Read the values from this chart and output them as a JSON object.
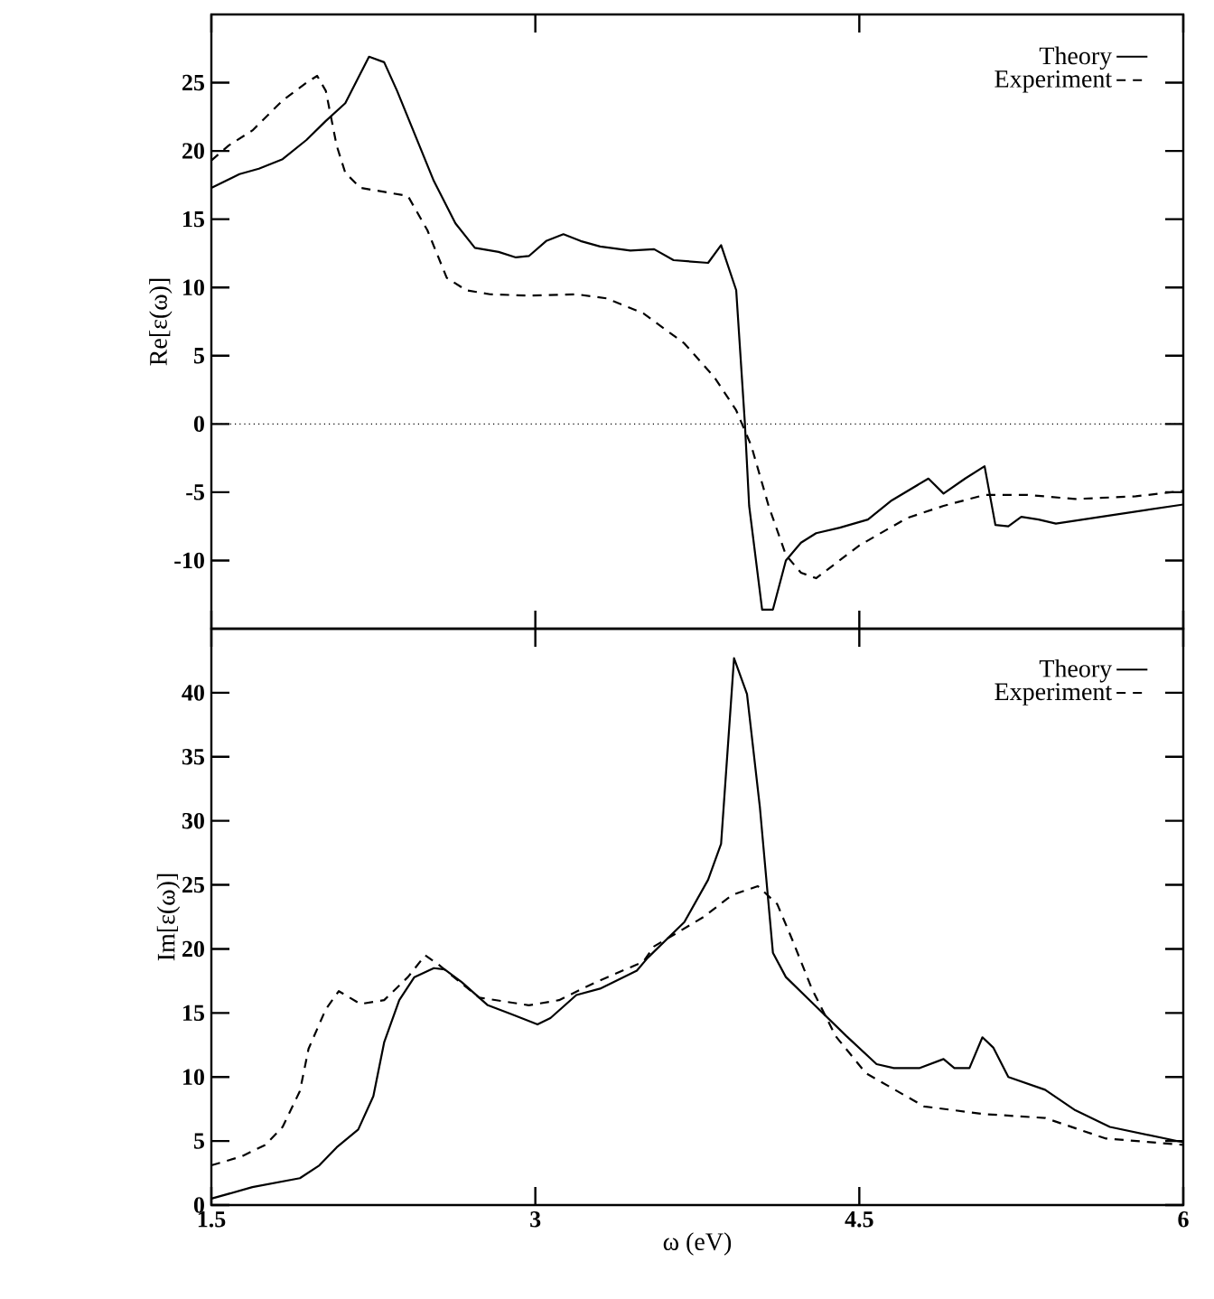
{
  "chart_data": [
    {
      "type": "line",
      "ylabel": "Re[ε(ω)]",
      "xlim": [
        1.5,
        6
      ],
      "xticks": [
        1.5,
        3,
        4.5,
        6
      ],
      "ylim": [
        -15,
        30
      ],
      "yticks": [
        -10,
        -5,
        0,
        5,
        10,
        15,
        20,
        25
      ],
      "tick_labels": "y",
      "legend": "top right",
      "grid": false,
      "ref_lines": [
        {
          "axis": "y",
          "value": 0,
          "line_style": "dotted"
        }
      ],
      "series": [
        {
          "name": "Theory",
          "color": "#000000",
          "line_style": "solid",
          "x": [
            1.5,
            1.63,
            1.72,
            1.83,
            1.94,
            2.03,
            2.12,
            2.23,
            2.3,
            2.36,
            2.53,
            2.63,
            2.72,
            2.83,
            2.91,
            2.97,
            3.05,
            3.13,
            3.21,
            3.3,
            3.44,
            3.55,
            3.64,
            3.8,
            3.86,
            3.93,
            3.97,
            3.99,
            4.05,
            4.1,
            4.16,
            4.23,
            4.3,
            4.41,
            4.54,
            4.65,
            4.82,
            4.89,
            4.99,
            5.08,
            5.13,
            5.19,
            5.25,
            5.33,
            5.41,
            5.66,
            6.0
          ],
          "values": [
            17.3,
            18.3,
            18.7,
            19.4,
            20.8,
            22.2,
            23.5,
            26.9,
            26.5,
            24.4,
            17.8,
            14.7,
            12.9,
            12.6,
            12.2,
            12.3,
            13.4,
            13.9,
            13.4,
            13.0,
            12.7,
            12.8,
            12.0,
            11.8,
            13.1,
            9.8,
            0.1,
            -6.0,
            -13.6,
            -13.6,
            -10.0,
            -8.7,
            -8.0,
            -7.6,
            -7.0,
            -5.6,
            -4.0,
            -5.1,
            -4.0,
            -3.1,
            -7.4,
            -7.5,
            -6.8,
            -7.0,
            -7.3,
            -6.7,
            -5.9
          ]
        },
        {
          "name": "Experiment",
          "color": "#000000",
          "line_style": "dashed",
          "x": [
            1.5,
            1.58,
            1.69,
            1.83,
            1.94,
            1.99,
            2.03,
            2.08,
            2.12,
            2.19,
            2.3,
            2.41,
            2.5,
            2.59,
            2.68,
            2.79,
            2.97,
            3.19,
            3.33,
            3.5,
            3.69,
            3.83,
            3.93,
            4.0,
            4.08,
            4.16,
            4.23,
            4.3,
            4.5,
            4.72,
            4.89,
            5.08,
            5.28,
            5.5,
            5.78,
            6.0
          ],
          "values": [
            19.3,
            20.4,
            21.5,
            23.7,
            25.0,
            25.5,
            24.4,
            20.4,
            18.4,
            17.3,
            17.0,
            16.7,
            14.2,
            10.7,
            9.8,
            9.5,
            9.4,
            9.5,
            9.2,
            8.1,
            5.9,
            3.4,
            1.0,
            -1.6,
            -6.0,
            -9.6,
            -10.9,
            -11.3,
            -8.9,
            -6.9,
            -6.0,
            -5.2,
            -5.2,
            -5.5,
            -5.3,
            -4.9
          ]
        }
      ]
    },
    {
      "type": "line",
      "xlabel": "ω (eV)",
      "ylabel": "Im[ε(ω)]",
      "xlim": [
        1.5,
        6
      ],
      "xticks": [
        1.5,
        3,
        4.5,
        6
      ],
      "ylim": [
        0,
        45
      ],
      "yticks": [
        0,
        5,
        10,
        15,
        20,
        25,
        30,
        35,
        40
      ],
      "legend": "top right",
      "grid": false,
      "series": [
        {
          "name": "Theory",
          "color": "#000000",
          "line_style": "solid",
          "x": [
            1.5,
            1.69,
            1.91,
            2.0,
            2.08,
            2.18,
            2.25,
            2.3,
            2.37,
            2.44,
            2.53,
            2.58,
            2.66,
            2.78,
            2.89,
            3.01,
            3.07,
            3.19,
            3.3,
            3.47,
            3.52,
            3.69,
            3.8,
            3.86,
            3.92,
            3.98,
            4.04,
            4.1,
            4.16,
            4.3,
            4.44,
            4.58,
            4.66,
            4.78,
            4.89,
            4.94,
            5.01,
            5.07,
            5.12,
            5.19,
            5.36,
            5.5,
            5.66,
            6.0
          ],
          "values": [
            0.5,
            1.4,
            2.1,
            3.1,
            4.5,
            5.9,
            8.5,
            12.7,
            16.0,
            17.8,
            18.5,
            18.4,
            17.4,
            15.6,
            14.9,
            14.1,
            14.6,
            16.4,
            16.9,
            18.3,
            19.3,
            22.1,
            25.4,
            28.2,
            42.7,
            39.9,
            31.0,
            19.7,
            17.8,
            15.5,
            13.2,
            11.0,
            10.7,
            10.7,
            11.4,
            10.7,
            10.7,
            13.1,
            12.3,
            10.0,
            9.0,
            7.4,
            6.1,
            4.9
          ]
        },
        {
          "name": "Experiment",
          "color": "#000000",
          "line_style": "dashed",
          "x": [
            1.5,
            1.64,
            1.75,
            1.83,
            1.91,
            1.95,
            2.03,
            2.09,
            2.19,
            2.3,
            2.41,
            2.49,
            2.55,
            2.74,
            2.97,
            3.11,
            3.28,
            3.5,
            3.55,
            3.78,
            3.91,
            4.03,
            4.12,
            4.19,
            4.28,
            4.39,
            4.53,
            4.8,
            5.08,
            5.36,
            5.64,
            6.0
          ],
          "values": [
            3.1,
            3.8,
            4.7,
            6.1,
            8.9,
            12.2,
            15.3,
            16.7,
            15.7,
            16.0,
            17.8,
            19.5,
            18.8,
            16.2,
            15.6,
            16.0,
            17.4,
            19.0,
            20.2,
            22.5,
            24.2,
            24.9,
            23.5,
            20.7,
            16.9,
            13.2,
            10.3,
            7.7,
            7.1,
            6.8,
            5.2,
            4.7
          ]
        }
      ]
    }
  ]
}
